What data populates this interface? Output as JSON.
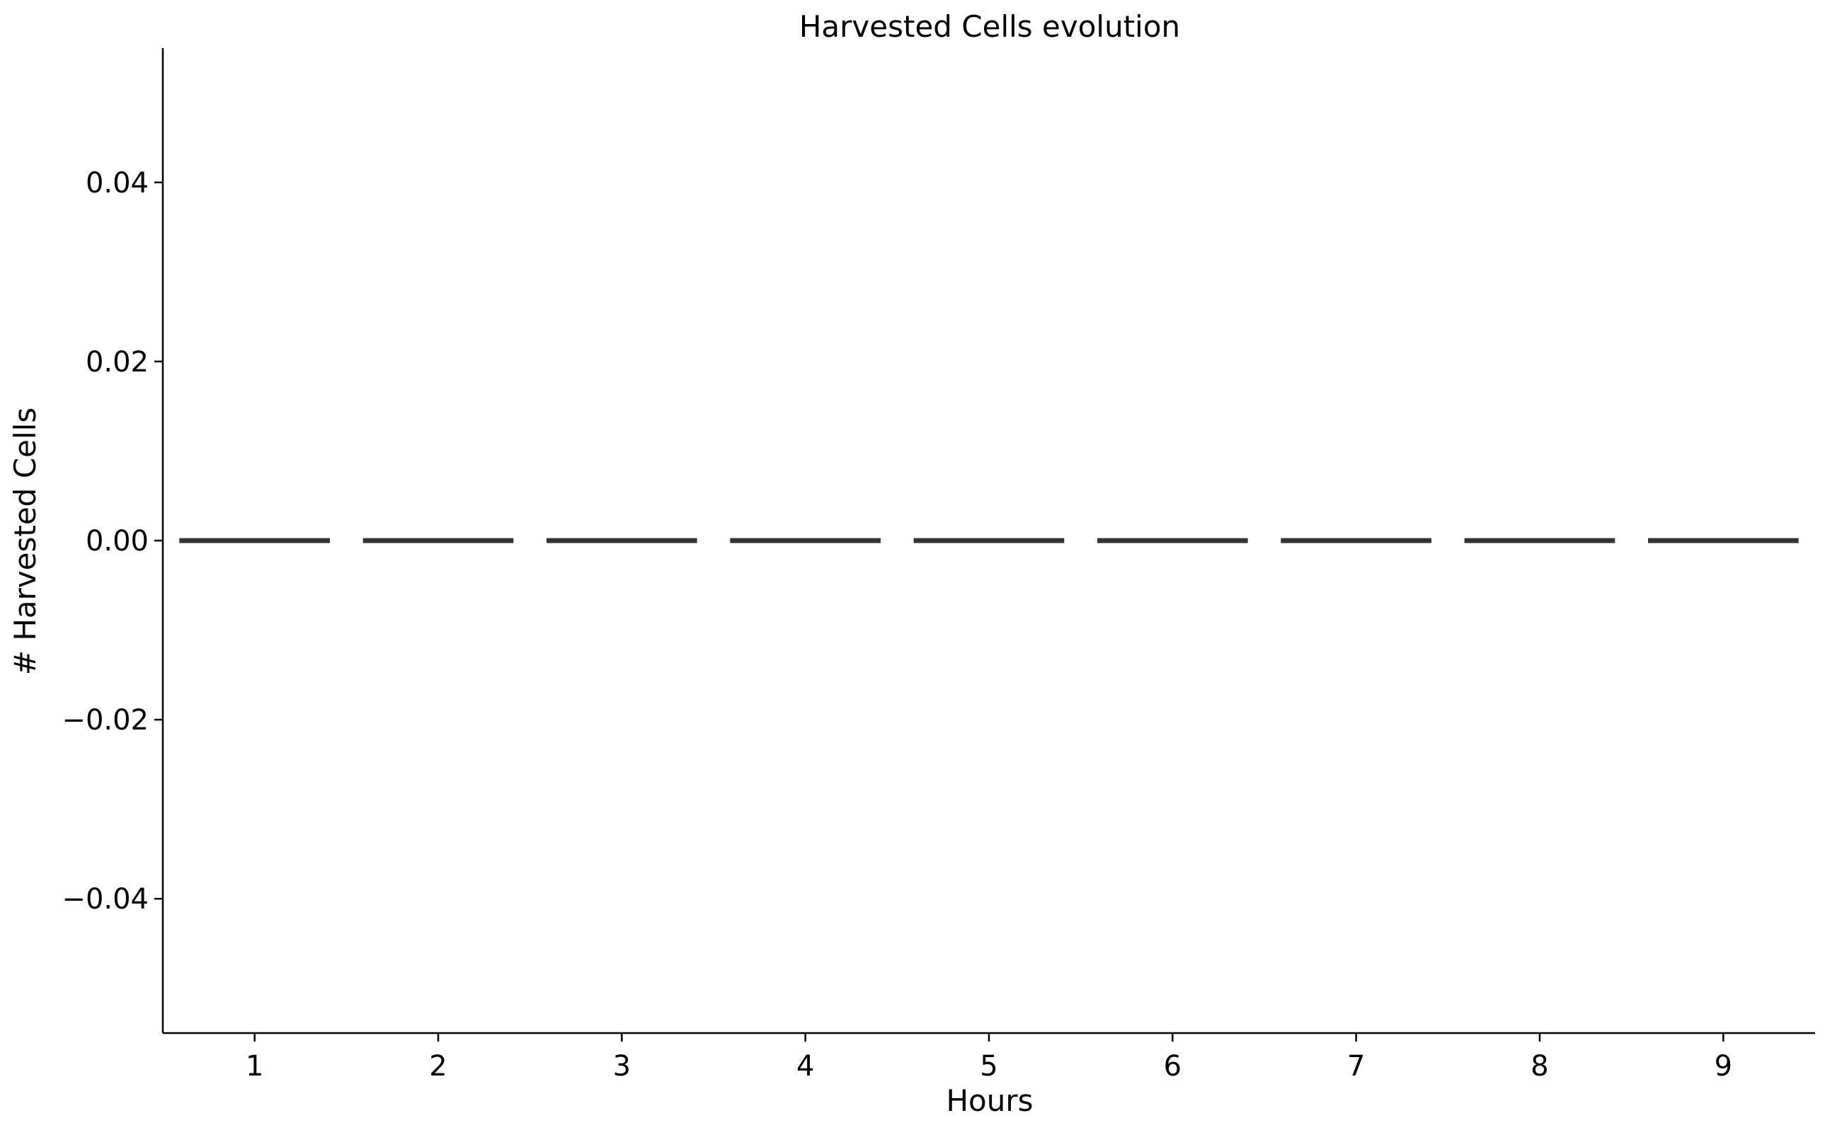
{
  "chart_data": {
    "type": "box",
    "title": "Harvested Cells evolution",
    "xlabel": "Hours",
    "ylabel": "# Harvested Cells",
    "categories": [
      "1",
      "2",
      "3",
      "4",
      "5",
      "6",
      "7",
      "8",
      "9"
    ],
    "values": [
      0,
      0,
      0,
      0,
      0,
      0,
      0,
      0,
      0
    ],
    "ylim": [
      -0.055,
      0.055
    ],
    "yticks": [
      -0.04,
      -0.02,
      0.0,
      0.02,
      0.04
    ],
    "ytick_labels": [
      "−0.04",
      "−0.02",
      "0.00",
      "0.02",
      "0.04"
    ],
    "grid": false,
    "colors": {
      "line": "#333333",
      "axis": "#000000",
      "background": "#ffffff"
    }
  }
}
